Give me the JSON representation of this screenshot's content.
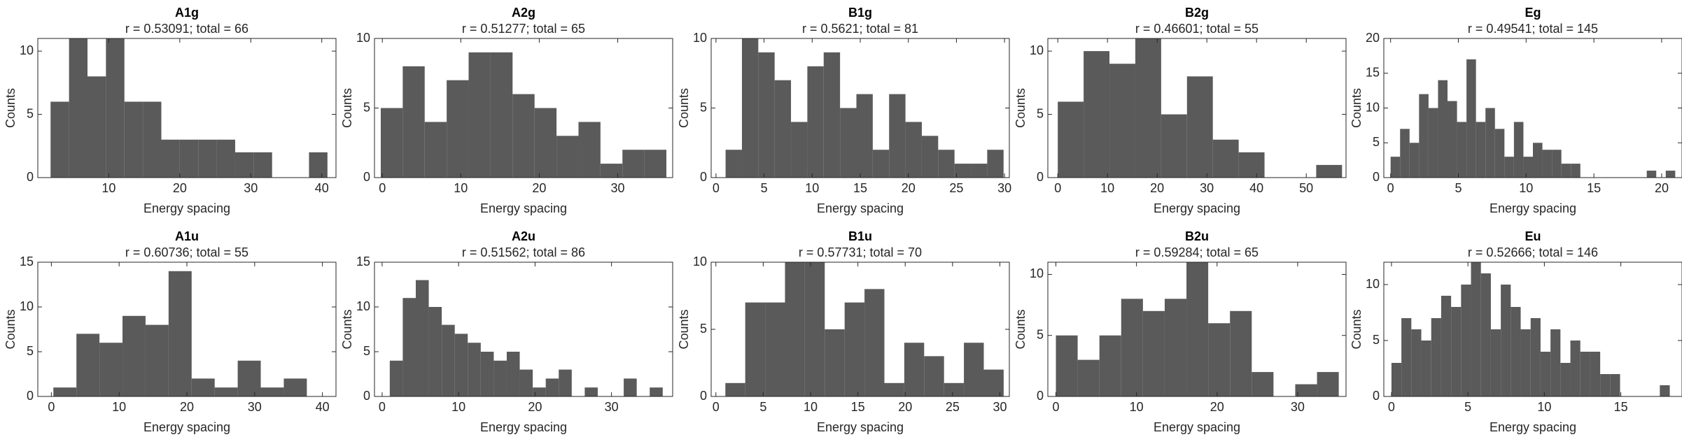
{
  "chart_data": [
    {
      "type": "histogram",
      "title": "A1g",
      "subtitle": "r = 0.53091; total = 66",
      "xlabel": "Energy spacing",
      "ylabel": "Counts",
      "color": "#5a5a5a",
      "bins": [
        1.8,
        4.4,
        7,
        9.6,
        12.2,
        14.8,
        17.4,
        20,
        22.6,
        25.2,
        27.8,
        30.4,
        33,
        35.6,
        38.2,
        40.8
      ],
      "values": [
        6,
        11,
        8,
        11,
        6,
        6,
        3,
        3,
        3,
        3,
        2,
        2,
        0,
        0,
        2
      ],
      "xlim": [
        0,
        42
      ],
      "ylim": [
        0,
        11
      ],
      "xticks": [
        10,
        20,
        30,
        40
      ],
      "yticks": [
        0,
        5,
        10
      ]
    },
    {
      "type": "histogram",
      "title": "A2g",
      "subtitle": "r = 0.51277; total = 65",
      "xlabel": "Energy spacing",
      "ylabel": "Counts",
      "color": "#5a5a5a",
      "bins": [
        -0.2,
        2.6,
        5.4,
        8.2,
        11,
        13.8,
        16.6,
        19.4,
        22.2,
        25,
        27.8,
        30.6,
        33.4,
        36.2
      ],
      "values": [
        5,
        8,
        4,
        7,
        9,
        9,
        6,
        5,
        3,
        4,
        1,
        2,
        2
      ],
      "xlim": [
        -1,
        37
      ],
      "ylim": [
        0,
        10
      ],
      "xticks": [
        0,
        10,
        20,
        30
      ],
      "yticks": [
        0,
        5,
        10
      ]
    },
    {
      "type": "histogram",
      "title": "B1g",
      "subtitle": "r = 0.5621; total = 81",
      "xlabel": "Energy spacing",
      "ylabel": "Counts",
      "color": "#5a5a5a",
      "bins": [
        1,
        2.7,
        4.4,
        6.1,
        7.8,
        9.5,
        11.2,
        12.9,
        14.6,
        16.3,
        18,
        19.7,
        21.4,
        23.1,
        24.8,
        26.5,
        28.2,
        29.9
      ],
      "values": [
        2,
        10,
        9,
        7,
        4,
        8,
        9,
        5,
        6,
        2,
        6,
        4,
        3,
        2,
        1,
        1,
        2
      ],
      "xlim": [
        -0.5,
        30.5
      ],
      "ylim": [
        0,
        10
      ],
      "xticks": [
        0,
        5,
        10,
        15,
        20,
        25,
        30
      ],
      "yticks": [
        0,
        5,
        10
      ]
    },
    {
      "type": "histogram",
      "title": "B2g",
      "subtitle": "r = 0.46601; total = 55",
      "xlabel": "Energy spacing",
      "ylabel": "Counts",
      "color": "#5a5a5a",
      "bins": [
        0,
        5.2,
        10.4,
        15.6,
        20.8,
        26,
        31.2,
        36.4,
        41.6,
        46.8,
        52,
        57.2
      ],
      "values": [
        6,
        10,
        9,
        11,
        5,
        8,
        3,
        2,
        0,
        0,
        1
      ],
      "xlim": [
        -2,
        58
      ],
      "ylim": [
        0,
        11
      ],
      "xticks": [
        0,
        10,
        20,
        30,
        40,
        50
      ],
      "yticks": [
        0,
        5,
        10
      ]
    },
    {
      "type": "histogram",
      "title": "Eg",
      "subtitle": "r = 0.49541; total = 145",
      "xlabel": "Energy spacing",
      "ylabel": "Counts",
      "color": "#5a5a5a",
      "bins": [
        0,
        0.7,
        1.4,
        2.1,
        2.8,
        3.5,
        4.2,
        4.9,
        5.6,
        6.3,
        7,
        7.7,
        8.4,
        9.1,
        9.8,
        10.5,
        11.2,
        11.9,
        12.6,
        13.3,
        14,
        14.7,
        15.4,
        16.1,
        16.8,
        17.5,
        18.2,
        18.9,
        19.6,
        20.3,
        21
      ],
      "values": [
        3,
        7,
        5,
        12,
        10,
        14,
        11,
        8,
        17,
        8,
        10,
        7,
        3,
        8,
        3,
        5,
        4,
        4,
        2,
        2,
        0,
        0,
        0,
        0,
        0,
        0,
        0,
        1,
        0,
        1
      ],
      "xlim": [
        -0.5,
        21.5
      ],
      "ylim": [
        0,
        20
      ],
      "xticks": [
        0,
        5,
        10,
        15,
        20
      ],
      "yticks": [
        0,
        5,
        10,
        15,
        20
      ]
    },
    {
      "type": "histogram",
      "title": "A1u",
      "subtitle": "r = 0.60736; total = 55",
      "xlabel": "Energy spacing",
      "ylabel": "Counts",
      "color": "#5a5a5a",
      "bins": [
        0.3,
        3.7,
        7.1,
        10.5,
        13.9,
        17.3,
        20.7,
        24.1,
        27.5,
        30.9,
        34.3,
        37.7
      ],
      "values": [
        1,
        7,
        6,
        9,
        8,
        14,
        2,
        1,
        4,
        1,
        2
      ],
      "xlim": [
        -2,
        42
      ],
      "ylim": [
        0,
        15
      ],
      "xticks": [
        0,
        10,
        20,
        30,
        40
      ],
      "yticks": [
        0,
        5,
        10,
        15
      ]
    },
    {
      "type": "histogram",
      "title": "A2u",
      "subtitle": "r = 0.51562; total = 86",
      "xlabel": "Energy spacing",
      "ylabel": "Counts",
      "color": "#5a5a5a",
      "bins": [
        1,
        2.7,
        4.4,
        6.1,
        7.8,
        9.5,
        11.2,
        12.9,
        14.6,
        16.3,
        18,
        19.7,
        21.4,
        23.1,
        24.8,
        26.5,
        28.2,
        29.9,
        31.6,
        33.3,
        35,
        36.7
      ],
      "values": [
        4,
        11,
        13,
        10,
        8,
        7,
        6,
        5,
        4,
        5,
        3,
        1,
        2,
        3,
        0,
        1,
        0,
        0,
        2,
        0,
        1
      ],
      "xlim": [
        -1,
        38
      ],
      "ylim": [
        0,
        15
      ],
      "xticks": [
        0,
        10,
        20,
        30
      ],
      "yticks": [
        0,
        5,
        10,
        15
      ]
    },
    {
      "type": "histogram",
      "title": "B1u",
      "subtitle": "r = 0.57731; total = 70",
      "xlabel": "Energy spacing",
      "ylabel": "Counts",
      "color": "#5a5a5a",
      "bins": [
        1,
        3.1,
        5.2,
        7.3,
        9.4,
        11.5,
        13.6,
        15.7,
        17.8,
        19.9,
        22,
        24.1,
        26.2,
        28.3,
        30.4
      ],
      "values": [
        1,
        7,
        7,
        10,
        10,
        5,
        7,
        8,
        1,
        4,
        3,
        1,
        4,
        2
      ],
      "xlim": [
        -0.5,
        31
      ],
      "ylim": [
        0,
        10
      ],
      "xticks": [
        0,
        5,
        10,
        15,
        20,
        25,
        30
      ],
      "yticks": [
        0,
        5,
        10
      ]
    },
    {
      "type": "histogram",
      "title": "B2u",
      "subtitle": "r = 0.59284; total = 65",
      "xlabel": "Energy spacing",
      "ylabel": "Counts",
      "color": "#5a5a5a",
      "bins": [
        0,
        2.7,
        5.4,
        8.1,
        10.8,
        13.5,
        16.2,
        18.9,
        21.6,
        24.3,
        27,
        29.7,
        32.4,
        35.1
      ],
      "values": [
        5,
        3,
        5,
        8,
        7,
        8,
        11,
        6,
        7,
        2,
        0,
        1,
        2
      ],
      "xlim": [
        -1,
        36
      ],
      "ylim": [
        0,
        11
      ],
      "xticks": [
        0,
        10,
        20,
        30
      ],
      "yticks": [
        0,
        5,
        10
      ]
    },
    {
      "type": "histogram",
      "title": "Eu",
      "subtitle": "r = 0.52666; total = 146",
      "xlabel": "Energy spacing",
      "ylabel": "Counts",
      "color": "#5a5a5a",
      "bins": [
        0,
        0.65,
        1.3,
        1.95,
        2.6,
        3.25,
        3.9,
        4.55,
        5.2,
        5.85,
        6.5,
        7.15,
        7.8,
        8.45,
        9.1,
        9.75,
        10.4,
        11.05,
        11.7,
        12.35,
        13,
        13.65,
        14.3,
        14.95,
        15.6,
        16.25,
        16.9,
        17.55,
        18.2
      ],
      "values": [
        3,
        7,
        6,
        5,
        7,
        9,
        8,
        10,
        12,
        11,
        6,
        10,
        8,
        6,
        7,
        4,
        6,
        3,
        5,
        4,
        4,
        2,
        2,
        0,
        0,
        0,
        0,
        1
      ],
      "xlim": [
        -0.5,
        19
      ],
      "ylim": [
        0,
        12
      ],
      "xticks": [
        0,
        5,
        10,
        15
      ],
      "yticks": [
        0,
        5,
        10
      ]
    }
  ]
}
